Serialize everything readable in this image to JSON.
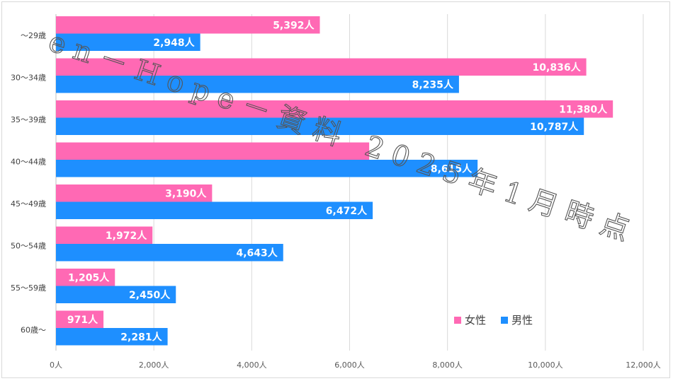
{
  "chart_data": {
    "type": "bar",
    "orientation": "horizontal",
    "categories": [
      "～29歳",
      "30～34歳",
      "35～39歳",
      "40～44歳",
      "45～49歳",
      "50～54歳",
      "55～59歳",
      "60歳～"
    ],
    "series": [
      {
        "name": "女性",
        "color": "#ff69b4",
        "values": [
          5392,
          10836,
          11380,
          6400,
          3190,
          1972,
          1205,
          971
        ],
        "labels": [
          "5,392人",
          "10,836人",
          "11,380人",
          "",
          "3,190人",
          "1,972人",
          "1,205人",
          "971人"
        ]
      },
      {
        "name": "男性",
        "color": "#1e8fff",
        "values": [
          2948,
          8235,
          10787,
          8615,
          6472,
          4643,
          2450,
          2281
        ],
        "labels": [
          "2,948人",
          "8,235人",
          "10,787人",
          "8,615人",
          "6,472人",
          "4,643人",
          "2,450人",
          "2,281人"
        ]
      }
    ],
    "xlim": [
      0,
      12000
    ],
    "xticks": [
      0,
      2000,
      4000,
      6000,
      8000,
      10000,
      12000
    ],
    "xtick_labels": [
      "0人",
      "2,000人",
      "4,000人",
      "6,000人",
      "8,000人",
      "10,000人",
      "12,000人"
    ],
    "grid": "vertical",
    "legend": "bottom-right",
    "watermark": "en－Hope－資料 2025年1月時点"
  }
}
